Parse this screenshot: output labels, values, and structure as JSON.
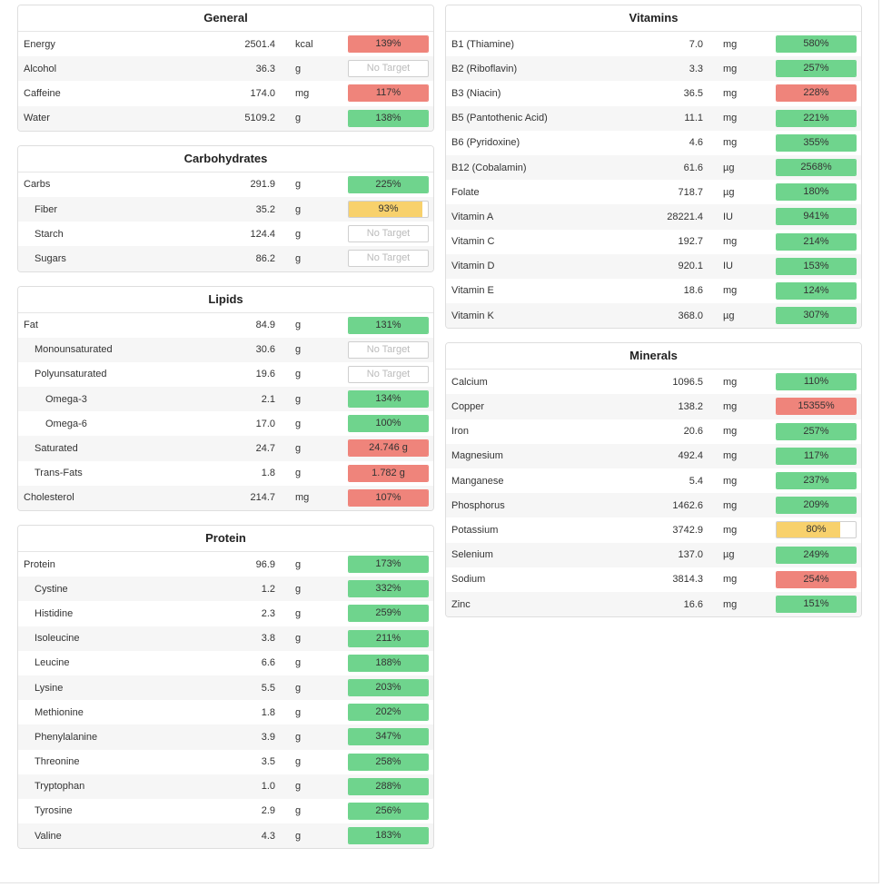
{
  "colors": {
    "green": "#6fd48d",
    "red": "#ef847b",
    "yellow": "#f8d16c"
  },
  "panels": {
    "general": {
      "title": "General",
      "rows": [
        {
          "name": "Energy",
          "amount": "2501.4",
          "unit": "kcal",
          "label": "139%",
          "status": "red",
          "pct": 100
        },
        {
          "name": "Alcohol",
          "amount": "36.3",
          "unit": "g",
          "label": "No Target",
          "status": "none",
          "pct": 0
        },
        {
          "name": "Caffeine",
          "amount": "174.0",
          "unit": "mg",
          "label": "117%",
          "status": "red",
          "pct": 100
        },
        {
          "name": "Water",
          "amount": "5109.2",
          "unit": "g",
          "label": "138%",
          "status": "green",
          "pct": 100
        }
      ]
    },
    "carbohydrates": {
      "title": "Carbohydrates",
      "rows": [
        {
          "name": "Carbs",
          "amount": "291.9",
          "unit": "g",
          "label": "225%",
          "status": "green",
          "pct": 100
        },
        {
          "name": "Fiber",
          "amount": "35.2",
          "unit": "g",
          "label": "93%",
          "status": "yellow",
          "pct": 93,
          "indent": 1
        },
        {
          "name": "Starch",
          "amount": "124.4",
          "unit": "g",
          "label": "No Target",
          "status": "none",
          "pct": 0,
          "indent": 1
        },
        {
          "name": "Sugars",
          "amount": "86.2",
          "unit": "g",
          "label": "No Target",
          "status": "none",
          "pct": 0,
          "indent": 1
        }
      ]
    },
    "lipids": {
      "title": "Lipids",
      "rows": [
        {
          "name": "Fat",
          "amount": "84.9",
          "unit": "g",
          "label": "131%",
          "status": "green",
          "pct": 100
        },
        {
          "name": "Monounsaturated",
          "amount": "30.6",
          "unit": "g",
          "label": "No Target",
          "status": "none",
          "pct": 0,
          "indent": 1
        },
        {
          "name": "Polyunsaturated",
          "amount": "19.6",
          "unit": "g",
          "label": "No Target",
          "status": "none",
          "pct": 0,
          "indent": 1
        },
        {
          "name": "Omega-3",
          "amount": "2.1",
          "unit": "g",
          "label": "134%",
          "status": "green",
          "pct": 100,
          "indent": 2
        },
        {
          "name": "Omega-6",
          "amount": "17.0",
          "unit": "g",
          "label": "100%",
          "status": "green",
          "pct": 100,
          "indent": 2
        },
        {
          "name": "Saturated",
          "amount": "24.7",
          "unit": "g",
          "label": "24.746 g",
          "status": "red",
          "pct": 100,
          "indent": 1
        },
        {
          "name": "Trans-Fats",
          "amount": "1.8",
          "unit": "g",
          "label": "1.782 g",
          "status": "red",
          "pct": 100,
          "indent": 1
        },
        {
          "name": "Cholesterol",
          "amount": "214.7",
          "unit": "mg",
          "label": "107%",
          "status": "red",
          "pct": 100
        }
      ]
    },
    "protein": {
      "title": "Protein",
      "rows": [
        {
          "name": "Protein",
          "amount": "96.9",
          "unit": "g",
          "label": "173%",
          "status": "green",
          "pct": 100
        },
        {
          "name": "Cystine",
          "amount": "1.2",
          "unit": "g",
          "label": "332%",
          "status": "green",
          "pct": 100,
          "indent": 1
        },
        {
          "name": "Histidine",
          "amount": "2.3",
          "unit": "g",
          "label": "259%",
          "status": "green",
          "pct": 100,
          "indent": 1
        },
        {
          "name": "Isoleucine",
          "amount": "3.8",
          "unit": "g",
          "label": "211%",
          "status": "green",
          "pct": 100,
          "indent": 1
        },
        {
          "name": "Leucine",
          "amount": "6.6",
          "unit": "g",
          "label": "188%",
          "status": "green",
          "pct": 100,
          "indent": 1
        },
        {
          "name": "Lysine",
          "amount": "5.5",
          "unit": "g",
          "label": "203%",
          "status": "green",
          "pct": 100,
          "indent": 1
        },
        {
          "name": "Methionine",
          "amount": "1.8",
          "unit": "g",
          "label": "202%",
          "status": "green",
          "pct": 100,
          "indent": 1
        },
        {
          "name": "Phenylalanine",
          "amount": "3.9",
          "unit": "g",
          "label": "347%",
          "status": "green",
          "pct": 100,
          "indent": 1
        },
        {
          "name": "Threonine",
          "amount": "3.5",
          "unit": "g",
          "label": "258%",
          "status": "green",
          "pct": 100,
          "indent": 1
        },
        {
          "name": "Tryptophan",
          "amount": "1.0",
          "unit": "g",
          "label": "288%",
          "status": "green",
          "pct": 100,
          "indent": 1
        },
        {
          "name": "Tyrosine",
          "amount": "2.9",
          "unit": "g",
          "label": "256%",
          "status": "green",
          "pct": 100,
          "indent": 1
        },
        {
          "name": "Valine",
          "amount": "4.3",
          "unit": "g",
          "label": "183%",
          "status": "green",
          "pct": 100,
          "indent": 1
        }
      ]
    },
    "vitamins": {
      "title": "Vitamins",
      "rows": [
        {
          "name": "B1 (Thiamine)",
          "amount": "7.0",
          "unit": "mg",
          "label": "580%",
          "status": "green",
          "pct": 100
        },
        {
          "name": "B2 (Riboflavin)",
          "amount": "3.3",
          "unit": "mg",
          "label": "257%",
          "status": "green",
          "pct": 100
        },
        {
          "name": "B3 (Niacin)",
          "amount": "36.5",
          "unit": "mg",
          "label": "228%",
          "status": "red",
          "pct": 100
        },
        {
          "name": "B5 (Pantothenic Acid)",
          "amount": "11.1",
          "unit": "mg",
          "label": "221%",
          "status": "green",
          "pct": 100
        },
        {
          "name": "B6 (Pyridoxine)",
          "amount": "4.6",
          "unit": "mg",
          "label": "355%",
          "status": "green",
          "pct": 100
        },
        {
          "name": "B12 (Cobalamin)",
          "amount": "61.6",
          "unit": "µg",
          "label": "2568%",
          "status": "green",
          "pct": 100
        },
        {
          "name": "Folate",
          "amount": "718.7",
          "unit": "µg",
          "label": "180%",
          "status": "green",
          "pct": 100
        },
        {
          "name": "Vitamin A",
          "amount": "28221.4",
          "unit": "IU",
          "label": "941%",
          "status": "green",
          "pct": 100
        },
        {
          "name": "Vitamin C",
          "amount": "192.7",
          "unit": "mg",
          "label": "214%",
          "status": "green",
          "pct": 100
        },
        {
          "name": "Vitamin D",
          "amount": "920.1",
          "unit": "IU",
          "label": "153%",
          "status": "green",
          "pct": 100
        },
        {
          "name": "Vitamin E",
          "amount": "18.6",
          "unit": "mg",
          "label": "124%",
          "status": "green",
          "pct": 100
        },
        {
          "name": "Vitamin K",
          "amount": "368.0",
          "unit": "µg",
          "label": "307%",
          "status": "green",
          "pct": 100
        }
      ]
    },
    "minerals": {
      "title": "Minerals",
      "rows": [
        {
          "name": "Calcium",
          "amount": "1096.5",
          "unit": "mg",
          "label": "110%",
          "status": "green",
          "pct": 100
        },
        {
          "name": "Copper",
          "amount": "138.2",
          "unit": "mg",
          "label": "15355%",
          "status": "red",
          "pct": 100
        },
        {
          "name": "Iron",
          "amount": "20.6",
          "unit": "mg",
          "label": "257%",
          "status": "green",
          "pct": 100
        },
        {
          "name": "Magnesium",
          "amount": "492.4",
          "unit": "mg",
          "label": "117%",
          "status": "green",
          "pct": 100
        },
        {
          "name": "Manganese",
          "amount": "5.4",
          "unit": "mg",
          "label": "237%",
          "status": "green",
          "pct": 100
        },
        {
          "name": "Phosphorus",
          "amount": "1462.6",
          "unit": "mg",
          "label": "209%",
          "status": "green",
          "pct": 100
        },
        {
          "name": "Potassium",
          "amount": "3742.9",
          "unit": "mg",
          "label": "80%",
          "status": "yellow",
          "pct": 80
        },
        {
          "name": "Selenium",
          "amount": "137.0",
          "unit": "µg",
          "label": "249%",
          "status": "green",
          "pct": 100
        },
        {
          "name": "Sodium",
          "amount": "3814.3",
          "unit": "mg",
          "label": "254%",
          "status": "red",
          "pct": 100
        },
        {
          "name": "Zinc",
          "amount": "16.6",
          "unit": "mg",
          "label": "151%",
          "status": "green",
          "pct": 100
        }
      ]
    }
  }
}
